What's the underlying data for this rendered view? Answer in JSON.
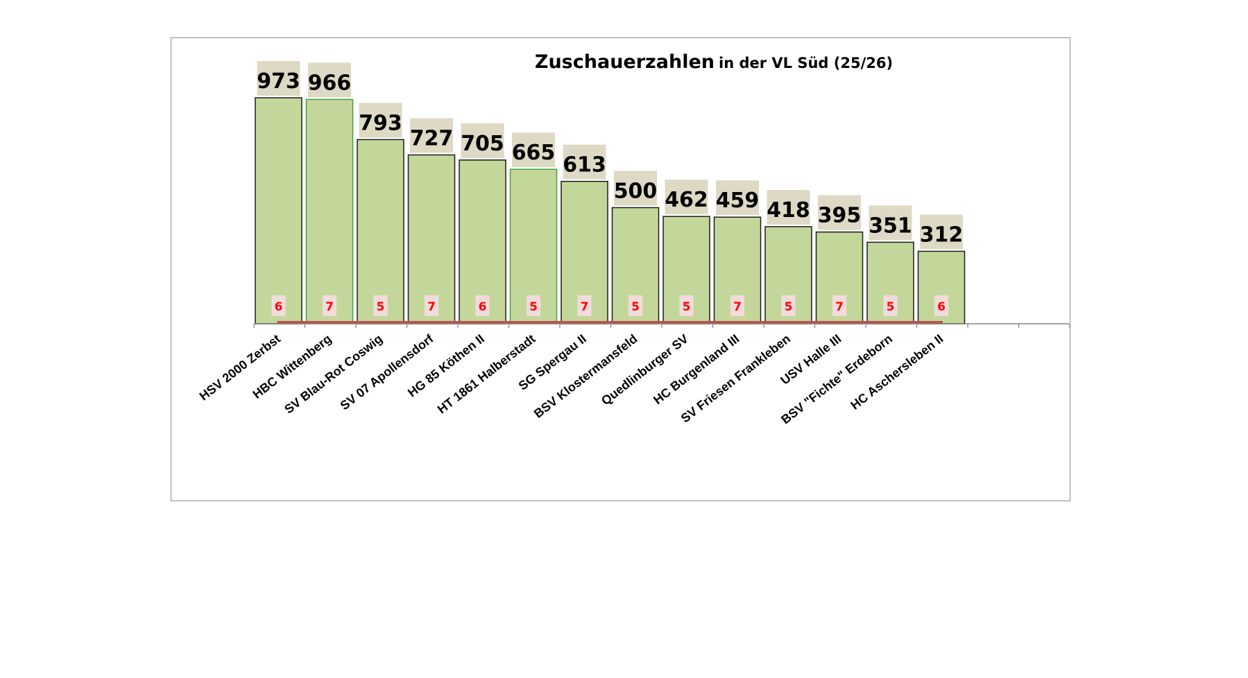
{
  "chart_data": {
    "type": "bar",
    "title": "Zuschauerzahlen",
    "subtitle": "in der VL Süd (25/26)",
    "categories": [
      "HSV 2000 Zerbst",
      "HBC Wittenberg",
      "SV Blau-Rot Coswig",
      "SV 07 Apollensdorf",
      "HG 85 Köthen II",
      "HT 1861 Halberstadt",
      "SG Spergau II",
      "BSV Klostermansfeld",
      "Quedlinburger SV",
      "HC Burgenland III",
      "SV Friesen Frankleben",
      "USV Halle III",
      "BSV \"Fichte\" Erdeborn",
      "HC Aschersleben II"
    ],
    "values": [
      973,
      966,
      793,
      727,
      705,
      665,
      613,
      500,
      462,
      459,
      418,
      395,
      351,
      312
    ],
    "games": [
      6,
      7,
      5,
      7,
      6,
      5,
      7,
      5,
      5,
      7,
      5,
      7,
      5,
      6
    ],
    "ylim": [
      0,
      1000
    ],
    "xlabel": "",
    "ylabel": "",
    "grid": false,
    "legend": "none",
    "colors": {
      "bar_fill": "#c4d79b",
      "bar_border": "#1a1a1a",
      "bar_border_highlight": "#3aa63a",
      "value_label_bg": "#ddd9c4",
      "games_label_bg": "#f2dcdb",
      "games_text": "#ff0000",
      "games_line": "#c0504d",
      "axis": "#808080"
    }
  }
}
